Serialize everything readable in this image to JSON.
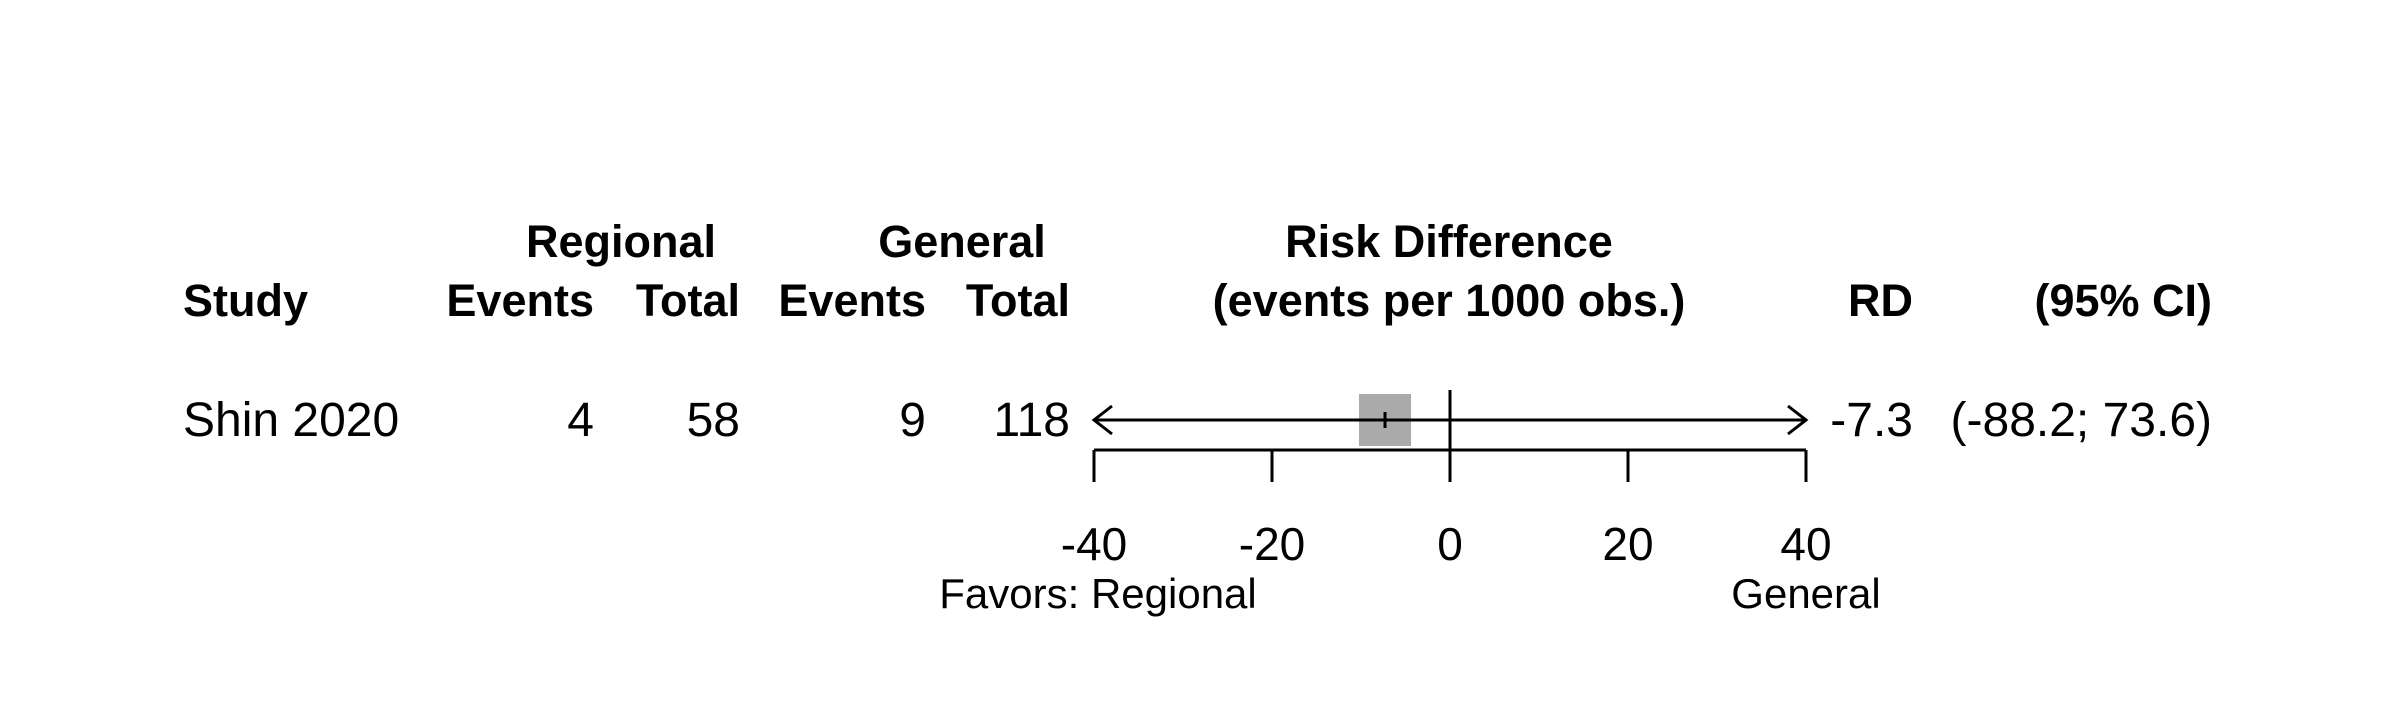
{
  "headers": {
    "group1": "Regional",
    "group2": "General",
    "effect_title_line1": "Risk Difference",
    "effect_title_line2": "(events per 1000 obs.)",
    "study": "Study",
    "g1_events": "Events",
    "g1_total": "Total",
    "g2_events": "Events",
    "g2_total": "Total",
    "rd": "RD",
    "ci": "(95% CI)"
  },
  "favors": {
    "left": "Favors: Regional",
    "right": "General"
  },
  "chart_data": {
    "type": "forest",
    "axis": {
      "min": -40,
      "max": 40,
      "ticks": [
        -40,
        -20,
        0,
        20,
        40
      ],
      "null_line": 0
    },
    "studies": [
      {
        "study": "Shin 2020",
        "regional_events": "4",
        "regional_total": "58",
        "general_events": "9",
        "general_total": "118",
        "rd": -7.3,
        "rd_text": "-7.3",
        "ci_lower": -88.2,
        "ci_upper": 73.6,
        "ci_text": "(-88.2; 73.6)"
      }
    ],
    "colors": {
      "box": "#aaaaaa",
      "line": "#000000"
    }
  }
}
